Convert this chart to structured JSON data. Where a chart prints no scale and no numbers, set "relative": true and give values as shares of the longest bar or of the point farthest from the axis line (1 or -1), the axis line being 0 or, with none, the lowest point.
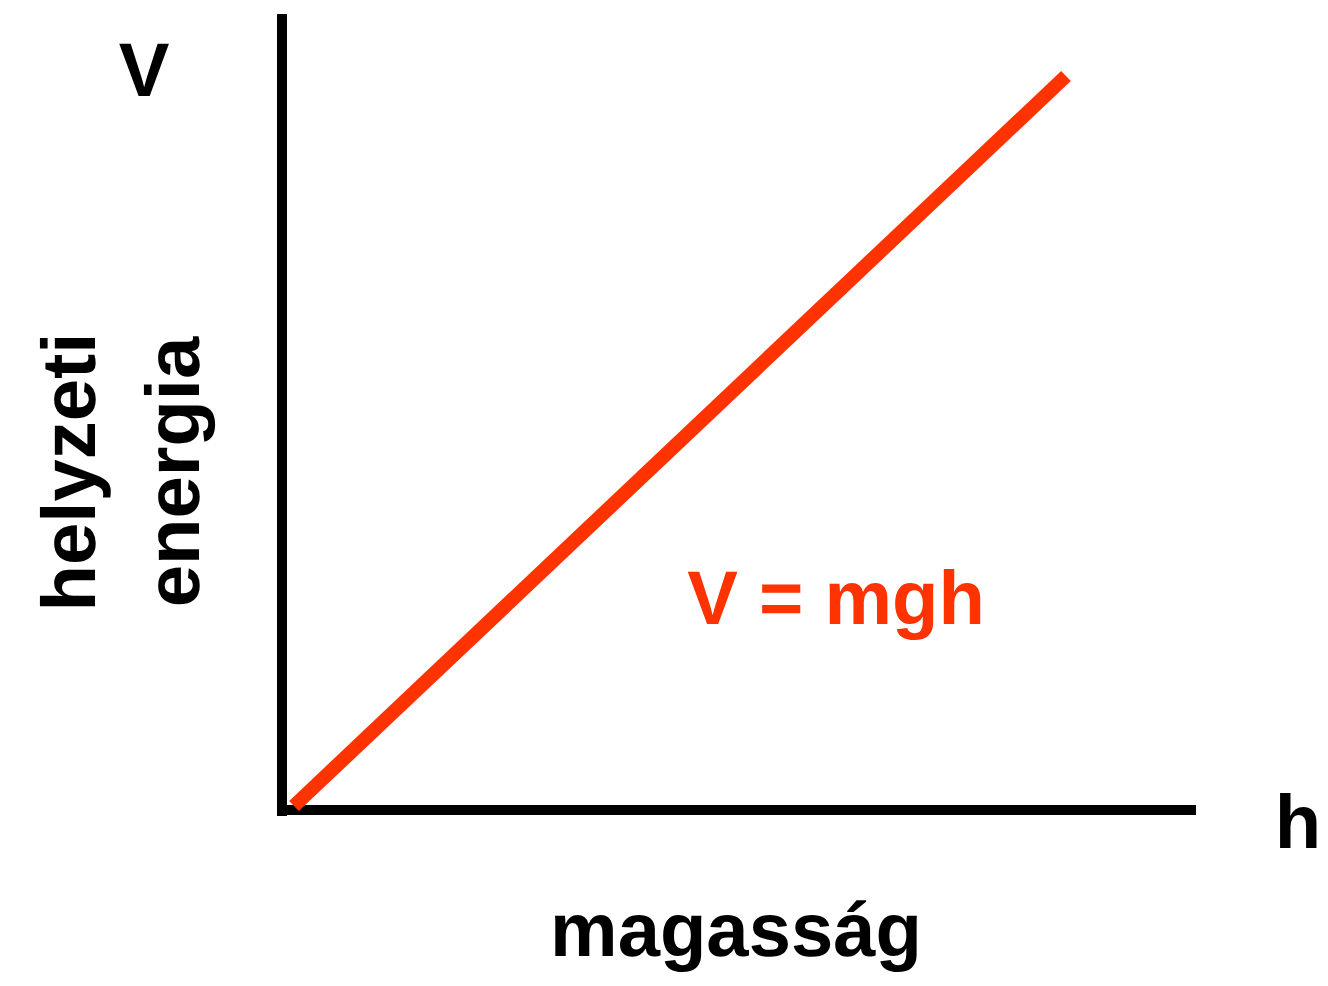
{
  "chart_data": {
    "type": "line",
    "xlabel": "magasság",
    "ylabel": "helyzeti energia",
    "annotations": [
      "V",
      "h",
      "V = mgh"
    ],
    "categories": [
      null,
      null
    ],
    "values": [
      0,
      1
    ],
    "color": "#ff3300",
    "relative": true
  }
}
